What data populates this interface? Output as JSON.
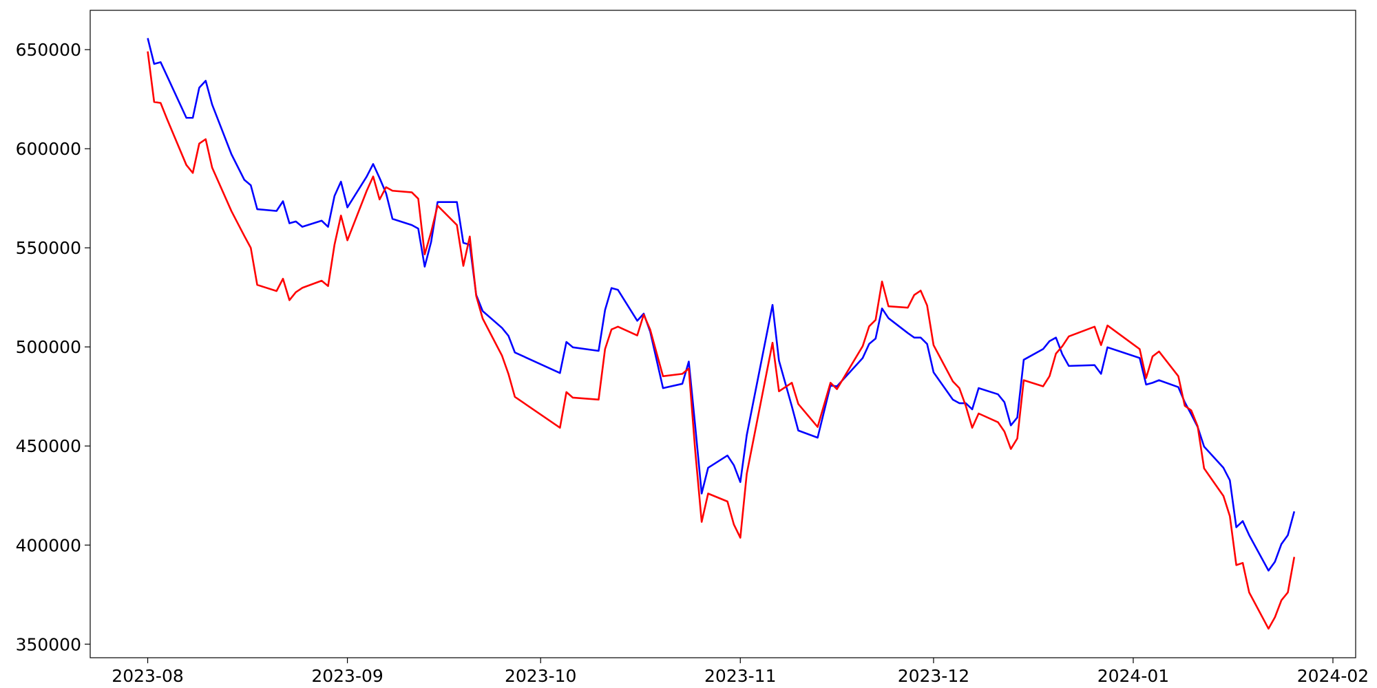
{
  "chart_data": {
    "type": "line",
    "x": [
      19570,
      19571,
      19572,
      19573,
      19576,
      19577,
      19578,
      19579,
      19580,
      19583,
      19585,
      19586,
      19587,
      19590,
      19591,
      19592,
      19593,
      19594,
      19597,
      19598,
      19599,
      19600,
      19601,
      19604,
      19605,
      19606,
      19607,
      19608,
      19611,
      19612,
      19613,
      19614,
      19615,
      19618,
      19619,
      19620,
      19621,
      19622,
      19625,
      19626,
      19627,
      19634,
      19635,
      19636,
      19640,
      19641,
      19642,
      19643,
      19646,
      19647,
      19648,
      19650,
      19653,
      19654,
      19655,
      19656,
      19657,
      19660,
      19661,
      19662,
      19663,
      19667,
      19668,
      19670,
      19671,
      19674,
      19676,
      19677,
      19681,
      19682,
      19683,
      19684,
      19685,
      19688,
      19689,
      19690,
      19691,
      19692,
      19695,
      19696,
      19697,
      19698,
      19699,
      19702,
      19703,
      19704,
      19705,
      19706,
      19709,
      19710,
      19711,
      19712,
      19713,
      19717,
      19718,
      19719,
      19724,
      19725,
      19726,
      19727,
      19730,
      19731,
      19732,
      19733,
      19734,
      19737,
      19738,
      19739,
      19740,
      19741,
      19744,
      19745,
      19746,
      19747,
      19748
    ],
    "series": [
      {
        "name": "blue",
        "color": "#0000ff",
        "values": [
          655800,
          642800,
          643700,
          636700,
          615600,
          615600,
          630800,
          634300,
          622300,
          597200,
          584300,
          581600,
          569500,
          568600,
          573500,
          562400,
          563300,
          560600,
          563700,
          560600,
          576200,
          583400,
          570400,
          586000,
          592300,
          585200,
          577600,
          564600,
          561500,
          559700,
          540500,
          553000,
          573100,
          573100,
          552500,
          551600,
          526200,
          518100,
          509600,
          505600,
          497200,
          486800,
          502500,
          499800,
          498000,
          518600,
          529700,
          528800,
          513200,
          516800,
          507800,
          479200,
          481400,
          492600,
          460000,
          426000,
          439000,
          445200,
          440300,
          431800,
          455500,
          521200,
          493100,
          470000,
          457800,
          454200,
          480600,
          480100,
          494400,
          501500,
          504200,
          519400,
          514500,
          507000,
          504700,
          504700,
          501500,
          487200,
          473400,
          471600,
          471600,
          468500,
          479200,
          476100,
          472100,
          460400,
          464400,
          493500,
          498900,
          502900,
          504700,
          496200,
          490400,
          490800,
          486400,
          499800,
          494400,
          481000,
          481900,
          483200,
          479700,
          472100,
          466000,
          459600,
          449700,
          439000,
          432700,
          409000,
          412100,
          405000,
          387100,
          391600,
          400500,
          405000,
          417000
        ]
      },
      {
        "name": "red",
        "color": "#ff0000",
        "values": [
          649100,
          623600,
          623100,
          615000,
          591800,
          587800,
          602600,
          604800,
          590500,
          568500,
          556000,
          550000,
          531300,
          528200,
          534400,
          523600,
          527600,
          529800,
          533400,
          530700,
          551600,
          566300,
          553800,
          578800,
          586000,
          574400,
          580600,
          578800,
          578000,
          574800,
          546700,
          557900,
          571300,
          561500,
          540900,
          555700,
          525700,
          514300,
          495600,
          486400,
          474800,
          459200,
          477200,
          474400,
          473400,
          498900,
          508800,
          510200,
          505800,
          516300,
          508800,
          485200,
          486400,
          489100,
          447500,
          411700,
          426000,
          422000,
          410400,
          403700,
          436000,
          502100,
          477600,
          481900,
          471200,
          459600,
          481900,
          478700,
          500400,
          510400,
          513600,
          533000,
          520500,
          519800,
          526200,
          528400,
          520900,
          500900,
          482600,
          479200,
          470300,
          459200,
          466400,
          462000,
          457300,
          448500,
          453800,
          483200,
          480100,
          485200,
          496600,
          500400,
          505300,
          510200,
          500900,
          510800,
          498900,
          484300,
          495200,
          497700,
          485200,
          470300,
          468000,
          460000,
          438700,
          424800,
          414600,
          389900,
          391000,
          376100,
          357800,
          363600,
          372100,
          376100,
          394000
        ]
      }
    ],
    "xlim": [
      19561.07,
      19757.53
    ],
    "xticks": [
      {
        "value": 19570,
        "label": "2023-08"
      },
      {
        "value": 19601,
        "label": "2023-09"
      },
      {
        "value": 19631,
        "label": "2023-10"
      },
      {
        "value": 19662,
        "label": "2023-11"
      },
      {
        "value": 19692,
        "label": "2023-12"
      },
      {
        "value": 19723,
        "label": "2024-01"
      },
      {
        "value": 19754,
        "label": "2024-02"
      }
    ],
    "ylim": [
      343150,
      669850
    ],
    "yticks": [
      350000,
      400000,
      450000,
      500000,
      550000,
      600000,
      650000
    ]
  }
}
